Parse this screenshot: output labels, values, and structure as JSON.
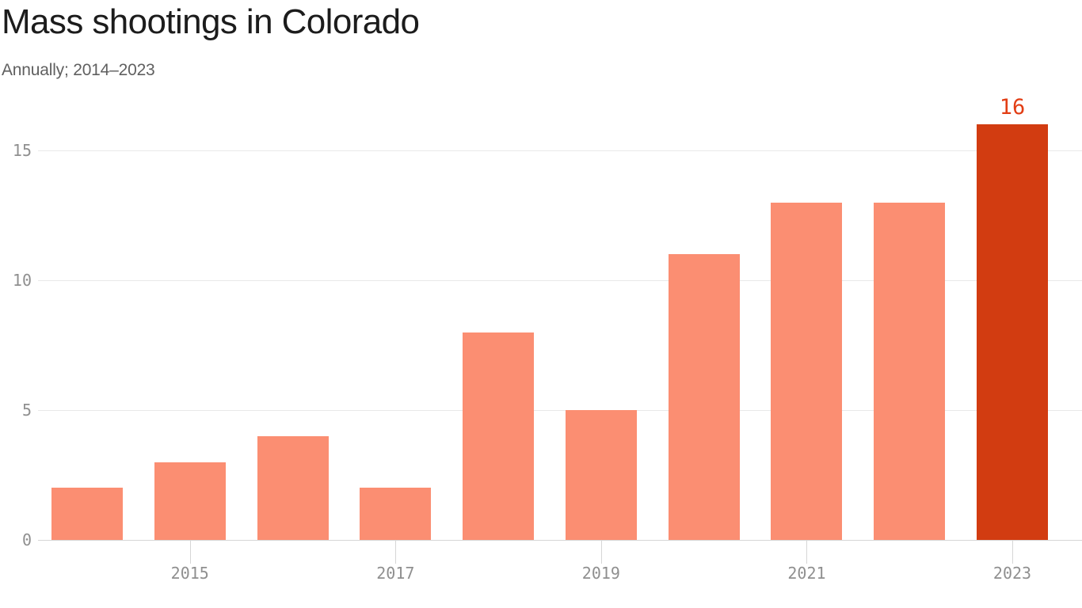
{
  "chart_data": {
    "type": "bar",
    "title": "Mass shootings in Colorado",
    "subtitle": "Annually; 2014–2023",
    "xlabel": "",
    "ylabel": "",
    "categories": [
      2014,
      2015,
      2016,
      2017,
      2018,
      2019,
      2020,
      2021,
      2022,
      2023
    ],
    "values": [
      2,
      3,
      4,
      2,
      8,
      5,
      11,
      13,
      13,
      16
    ],
    "ylim": [
      0,
      16
    ],
    "yticks": [
      0,
      5,
      10,
      15
    ],
    "xticks": [
      2015,
      2017,
      2019,
      2021,
      2023
    ],
    "grid": "horizontal",
    "legend": "none",
    "highlight": {
      "index": 9,
      "category": 2023,
      "value": 16,
      "label": "16"
    },
    "colors": {
      "bar": "#fb8e72",
      "highlight_bar": "#d23c11",
      "highlight_label": "#e23e15",
      "grid": "#e9e9e9",
      "axis_line": "#d6d6d6",
      "tick": "#d6d6d6",
      "axis_text": "#8f8f8f",
      "title": "#1c1c1c",
      "subtitle": "#606060",
      "background": "#ffffff"
    }
  }
}
